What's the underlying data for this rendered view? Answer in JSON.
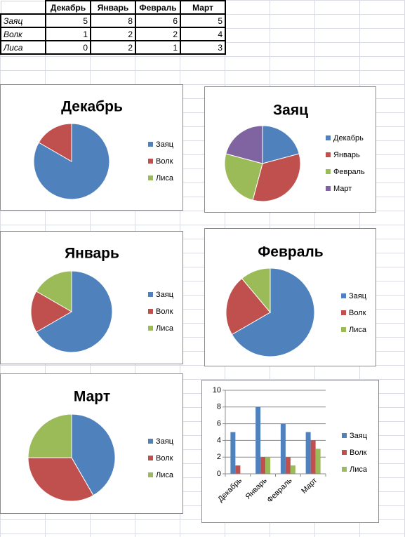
{
  "table": {
    "headers": [
      "Декабрь",
      "Январь",
      "Февраль",
      "Март"
    ],
    "rows": [
      {
        "label": "Заяц",
        "values": [
          5,
          8,
          6,
          5
        ]
      },
      {
        "label": "Волк",
        "values": [
          1,
          2,
          2,
          4
        ]
      },
      {
        "label": "Лиса",
        "values": [
          0,
          2,
          1,
          3
        ]
      }
    ]
  },
  "colors": [
    "#4f81bd",
    "#c0504d",
    "#9bbb59",
    "#8064a2"
  ],
  "chart_data": [
    {
      "type": "pie",
      "title": "Декабрь",
      "categories": [
        "Заяц",
        "Волк",
        "Лиса"
      ],
      "values": [
        5,
        1,
        0
      ],
      "legend": "right"
    },
    {
      "type": "pie",
      "title": "Заяц",
      "categories": [
        "Декабрь",
        "Январь",
        "Февраль",
        "Март"
      ],
      "values": [
        5,
        8,
        6,
        5
      ],
      "legend": "right"
    },
    {
      "type": "pie",
      "title": "Январь",
      "categories": [
        "Заяц",
        "Волк",
        "Лиса"
      ],
      "values": [
        8,
        2,
        2
      ],
      "legend": "right"
    },
    {
      "type": "pie",
      "title": "Февраль",
      "categories": [
        "Заяц",
        "Волк",
        "Лиса"
      ],
      "values": [
        6,
        2,
        1
      ],
      "legend": "right"
    },
    {
      "type": "pie",
      "title": "Март",
      "categories": [
        "Заяц",
        "Волк",
        "Лиса"
      ],
      "values": [
        5,
        4,
        3
      ],
      "legend": "right"
    },
    {
      "type": "bar",
      "title": "",
      "categories": [
        "Декабрь",
        "Январь",
        "Февраль",
        "Март"
      ],
      "series": [
        {
          "name": "Заяц",
          "values": [
            5,
            8,
            6,
            5
          ]
        },
        {
          "name": "Волк",
          "values": [
            1,
            2,
            2,
            4
          ]
        },
        {
          "name": "Лиса",
          "values": [
            0,
            2,
            1,
            3
          ]
        }
      ],
      "ylim": [
        0,
        10
      ],
      "yticks": [
        0,
        2,
        4,
        6,
        8,
        10
      ],
      "grid": true,
      "legend": "right"
    }
  ]
}
